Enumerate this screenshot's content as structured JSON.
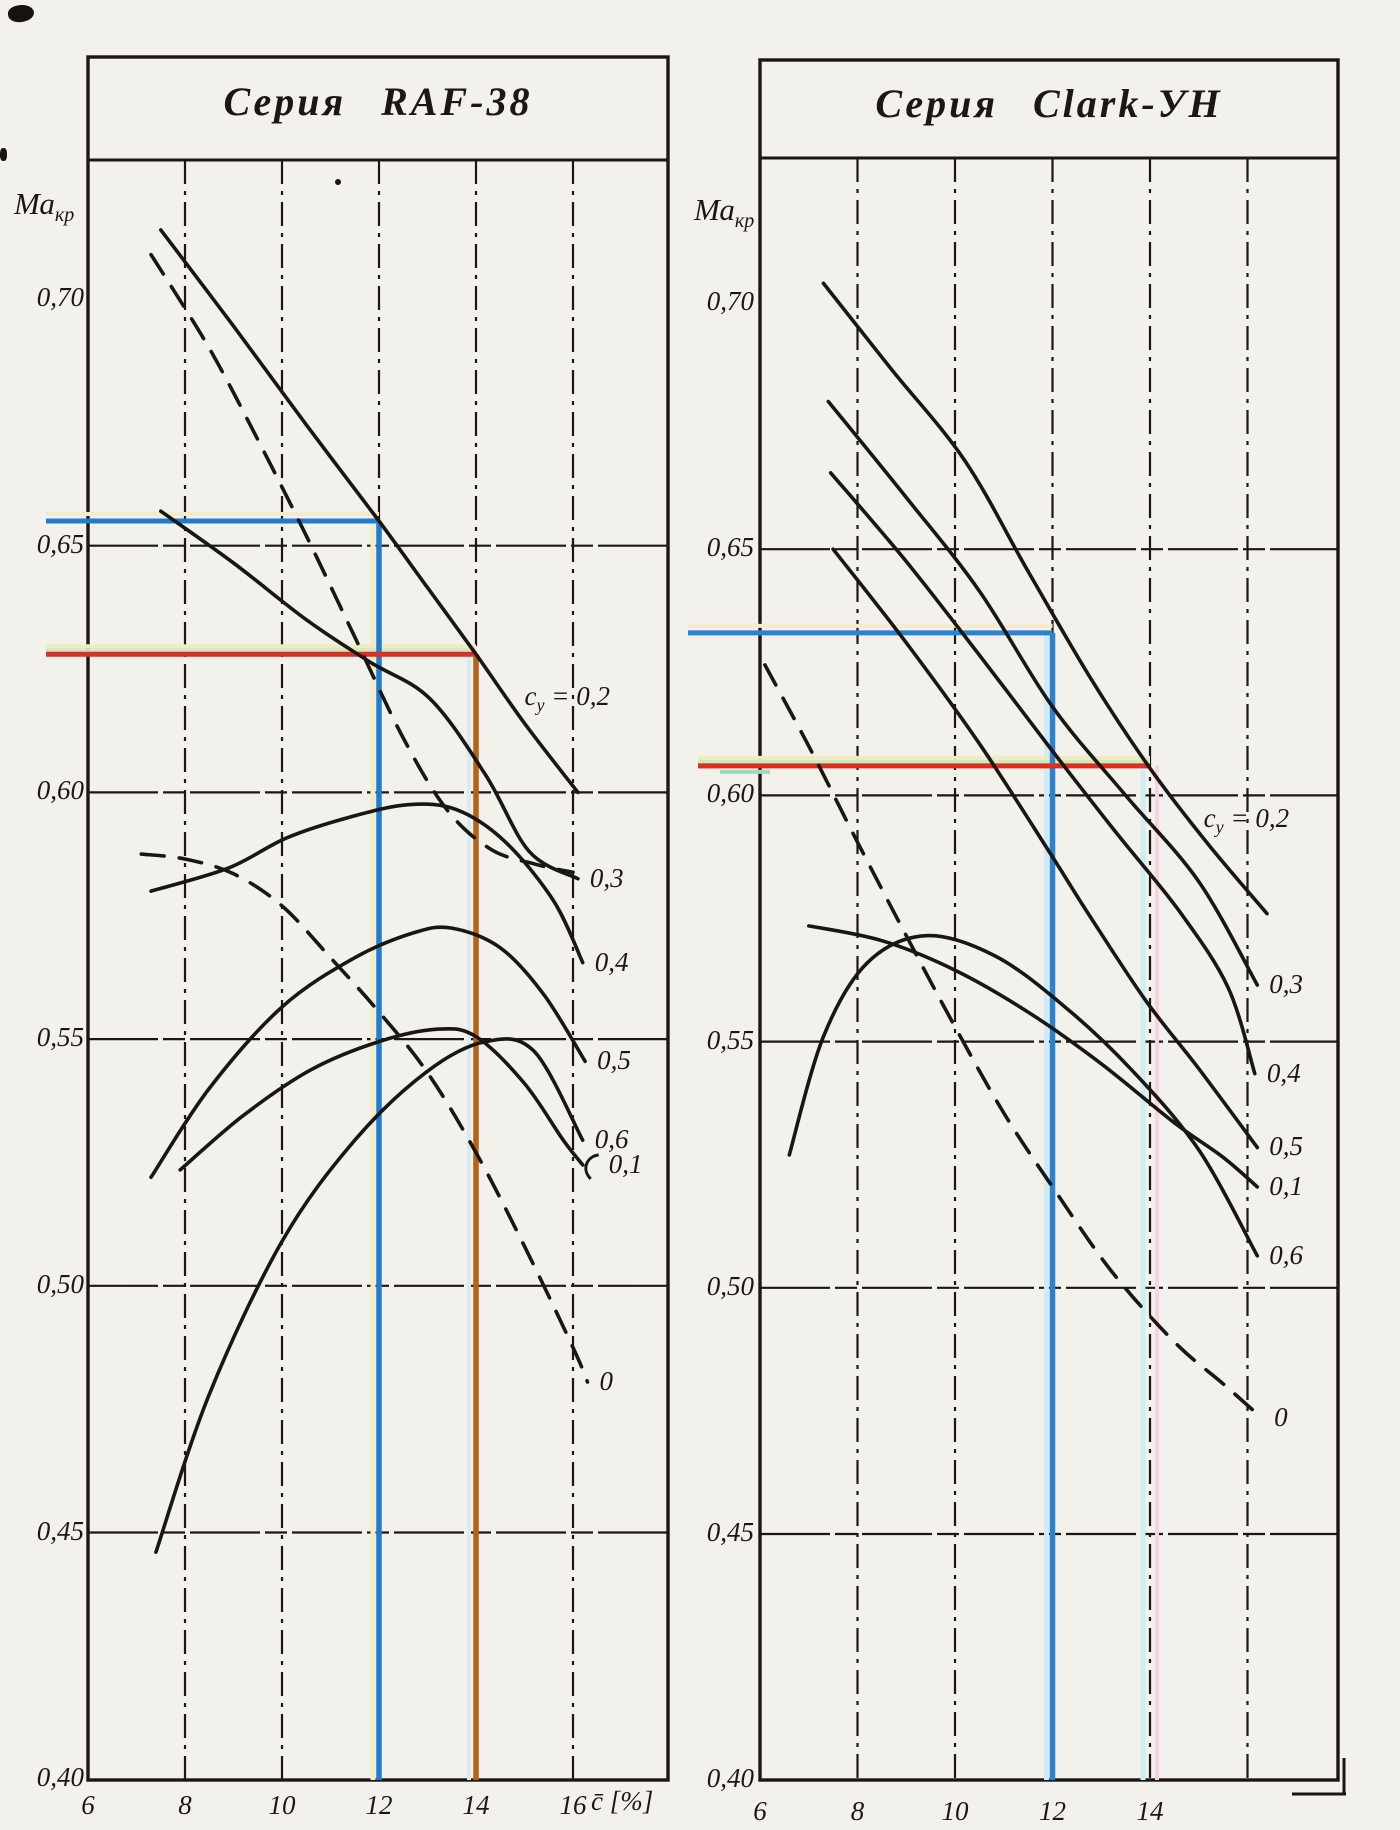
{
  "chart_data": [
    {
      "type": "line",
      "title": "Серия RAF-38",
      "ylabel": {
        "main": "Ма",
        "sub": "кр"
      },
      "xlabel": "c̄ [%]",
      "xlim": [
        6,
        16
      ],
      "ylim": [
        0.4,
        0.7
      ],
      "grid": true,
      "x_tick_labels": [
        "6",
        "8",
        "10",
        "12",
        "14",
        "16"
      ],
      "x_tick_values": [
        6,
        8,
        10,
        12,
        14,
        16
      ],
      "x_grid_values": [
        8,
        10,
        12,
        14,
        16
      ],
      "y_tick_labels": [
        "0,70",
        "0,65",
        "0,60",
        "0,55",
        "0,50",
        "0,45",
        "0,40"
      ],
      "y_tick_values": [
        0.7,
        0.65,
        0.6,
        0.55,
        0.5,
        0.45,
        0.4
      ],
      "series": [
        {
          "name": "cy=0.2",
          "style": "solid",
          "label": "cy = 0,2",
          "label_parts": {
            "pre": "c",
            "sub": "y",
            "post": " = 0,2"
          },
          "label_at": [
            15.0,
            0.6225
          ],
          "points": [
            [
              7.5,
              0.714
            ],
            [
              9.0,
              0.6945
            ],
            [
              10.5,
              0.6745
            ],
            [
              12.0,
              0.655
            ],
            [
              13.0,
              0.6415
            ],
            [
              14.0,
              0.628
            ],
            [
              15.0,
              0.614
            ],
            [
              16.1,
              0.6
            ]
          ]
        },
        {
          "name": "cy=0 (upper dashed)",
          "style": "dashed",
          "label": "",
          "points": [
            [
              7.3,
              0.709
            ],
            [
              8.5,
              0.69
            ],
            [
              9.5,
              0.6715
            ],
            [
              10.5,
              0.652
            ],
            [
              11.5,
              0.6315
            ],
            [
              12.5,
              0.611
            ],
            [
              13.4,
              0.5965
            ],
            [
              14.3,
              0.5885
            ],
            [
              15.2,
              0.5855
            ],
            [
              16.0,
              0.5838
            ]
          ]
        },
        {
          "name": "cy=0.3",
          "style": "solid",
          "label": "0,3",
          "points": [
            [
              7.5,
              0.657
            ],
            [
              9.0,
              0.6465
            ],
            [
              10.5,
              0.635
            ],
            [
              11.8,
              0.6265
            ],
            [
              13.05,
              0.619
            ],
            [
              14.2,
              0.6035
            ],
            [
              15.1,
              0.588
            ],
            [
              16.1,
              0.5825
            ]
          ]
        },
        {
          "name": "cy=0.4",
          "style": "solid",
          "label": "0,4",
          "points": [
            [
              7.3,
              0.58
            ],
            [
              8.9,
              0.5847
            ],
            [
              10.1,
              0.5908
            ],
            [
              11.4,
              0.595
            ],
            [
              12.6,
              0.5975
            ],
            [
              13.6,
              0.5965
            ],
            [
              14.6,
              0.59
            ],
            [
              15.6,
              0.578
            ],
            [
              16.2,
              0.5655
            ]
          ]
        },
        {
          "name": "cy=0.5",
          "style": "solid",
          "label": "0,5",
          "points": [
            [
              7.3,
              0.522
            ],
            [
              8.5,
              0.54
            ],
            [
              10.0,
              0.5565
            ],
            [
              11.5,
              0.5665
            ],
            [
              12.7,
              0.5715
            ],
            [
              13.5,
              0.5725
            ],
            [
              14.5,
              0.5685
            ],
            [
              15.4,
              0.559
            ],
            [
              16.25,
              0.5455
            ]
          ]
        },
        {
          "name": "cy=0.6",
          "style": "solid",
          "label": "0,6",
          "points": [
            [
              7.4,
              0.446
            ],
            [
              8.5,
              0.478
            ],
            [
              10.0,
              0.509
            ],
            [
              11.5,
              0.5295
            ],
            [
              13.0,
              0.5435
            ],
            [
              14.2,
              0.5495
            ],
            [
              15.2,
              0.5475
            ],
            [
              16.2,
              0.5295
            ]
          ]
        },
        {
          "name": "cy=0.1",
          "style": "solid",
          "label": "0,1",
          "hook": true,
          "points": [
            [
              7.9,
              0.5235
            ],
            [
              9.2,
              0.5345
            ],
            [
              10.6,
              0.5438
            ],
            [
              12.0,
              0.5495
            ],
            [
              13.2,
              0.552
            ],
            [
              14.0,
              0.5505
            ],
            [
              15.0,
              0.541
            ],
            [
              15.8,
              0.5295
            ],
            [
              16.2,
              0.5245
            ]
          ]
        },
        {
          "name": "cy=0 (dashed)",
          "style": "dashed",
          "label": "0",
          "points": [
            [
              7.1,
              0.5875
            ],
            [
              8.0,
              0.5865
            ],
            [
              9.0,
              0.5835
            ],
            [
              10.0,
              0.577
            ],
            [
              11.0,
              0.5665
            ],
            [
              12.0,
              0.5555
            ],
            [
              13.0,
              0.5432
            ],
            [
              14.0,
              0.527
            ],
            [
              15.0,
              0.508
            ],
            [
              16.0,
              0.4875
            ],
            [
              16.3,
              0.4805
            ]
          ]
        }
      ],
      "annotations": [
        {
          "name": "blue-reading",
          "c": 12,
          "Ma": 0.655,
          "h_color": "#1f7cd0",
          "v_color": "#1f7cd0"
        },
        {
          "name": "red-reading",
          "c": 14,
          "Ma": 0.628,
          "h_color": "#d23227",
          "v_color": "#b86114"
        }
      ]
    },
    {
      "type": "line",
      "title": "Серия Clark-УН",
      "ylabel": {
        "main": "Ма",
        "sub": "кр"
      },
      "xlabel": "",
      "xlim": [
        6,
        16
      ],
      "ylim": [
        0.4,
        0.7
      ],
      "grid": true,
      "x_tick_labels": [
        "6",
        "8",
        "10",
        "12",
        "14"
      ],
      "x_tick_values": [
        6,
        8,
        10,
        12,
        14
      ],
      "x_grid_values": [
        8,
        10,
        12,
        14,
        16
      ],
      "y_tick_labels": [
        "0,70",
        "0,65",
        "0,60",
        "0,55",
        "0,50",
        "0,45",
        "0,40"
      ],
      "y_tick_values": [
        0.7,
        0.65,
        0.6,
        0.55,
        0.5,
        0.45,
        0.4
      ],
      "series": [
        {
          "name": "cy=0.2",
          "style": "solid",
          "label": "cy = 0,2",
          "label_parts": {
            "pre": "c",
            "sub": "y",
            "post": " = 0,2"
          },
          "label_at": [
            15.1,
            0.5985
          ],
          "points": [
            [
              7.3,
              0.704
            ],
            [
              8.7,
              0.6865
            ],
            [
              10.2,
              0.668
            ],
            [
              11.5,
              0.6455
            ],
            [
              12.8,
              0.6235
            ],
            [
              14.0,
              0.6055
            ],
            [
              15.2,
              0.59
            ],
            [
              16.4,
              0.576
            ]
          ]
        },
        {
          "name": "cy=0.3",
          "style": "solid",
          "label": "0,3",
          "points": [
            [
              7.4,
              0.68
            ],
            [
              9.0,
              0.6605
            ],
            [
              10.5,
              0.6415
            ],
            [
              12.0,
              0.618
            ],
            [
              13.5,
              0.6
            ],
            [
              15.0,
              0.5825
            ],
            [
              16.2,
              0.5615
            ]
          ]
        },
        {
          "name": "cy=0.4",
          "style": "solid",
          "label": "0,4",
          "points": [
            [
              7.45,
              0.6655
            ],
            [
              9.0,
              0.6475
            ],
            [
              10.5,
              0.6285
            ],
            [
              12.0,
              0.609
            ],
            [
              13.3,
              0.5925
            ],
            [
              14.6,
              0.5765
            ],
            [
              15.6,
              0.561
            ],
            [
              16.15,
              0.5435
            ]
          ]
        },
        {
          "name": "cy=0.5",
          "style": "solid",
          "label": "0,5",
          "points": [
            [
              7.5,
              0.65
            ],
            [
              9.0,
              0.631
            ],
            [
              10.5,
              0.6105
            ],
            [
              12.0,
              0.5875
            ],
            [
              12.7,
              0.5765
            ],
            [
              13.9,
              0.5585
            ],
            [
              15.0,
              0.5445
            ],
            [
              16.2,
              0.5285
            ]
          ]
        },
        {
          "name": "cy=0.1",
          "style": "solid",
          "label": "0,1",
          "points": [
            [
              7.0,
              0.5735
            ],
            [
              8.5,
              0.5705
            ],
            [
              10.0,
              0.5645
            ],
            [
              11.5,
              0.556
            ],
            [
              13.0,
              0.5455
            ],
            [
              14.5,
              0.5335
            ],
            [
              15.5,
              0.5265
            ],
            [
              16.2,
              0.5205
            ]
          ]
        },
        {
          "name": "cy=0.6",
          "style": "solid",
          "label": "0,6",
          "points": [
            [
              6.6,
              0.527
            ],
            [
              7.3,
              0.551
            ],
            [
              8.2,
              0.566
            ],
            [
              9.4,
              0.5715
            ],
            [
              10.8,
              0.5675
            ],
            [
              12.2,
              0.5575
            ],
            [
              13.6,
              0.5445
            ],
            [
              15.0,
              0.528
            ],
            [
              16.2,
              0.5065
            ]
          ]
        },
        {
          "name": "cy=0 (dashed)",
          "style": "dashed",
          "label": "0",
          "points": [
            [
              6.1,
              0.6265
            ],
            [
              7.0,
              0.61
            ],
            [
              8.0,
              0.5905
            ],
            [
              9.0,
              0.5715
            ],
            [
              10.0,
              0.553
            ],
            [
              11.0,
              0.5355
            ],
            [
              12.0,
              0.5205
            ],
            [
              13.2,
              0.5035
            ],
            [
              14.5,
              0.489
            ],
            [
              15.5,
              0.4805
            ],
            [
              16.3,
              0.4735
            ]
          ]
        }
      ],
      "annotations": [
        {
          "name": "blue-reading",
          "c": 12,
          "Ma": 0.633,
          "h_color": "#2a83d2",
          "v_color": "#2a83d2"
        },
        {
          "name": "red-reading",
          "c": 14,
          "Ma": 0.606,
          "h_color": "#dd2f1c",
          "v_color": "#e2195a",
          "v_color_top": "#d8481a"
        }
      ]
    }
  ]
}
